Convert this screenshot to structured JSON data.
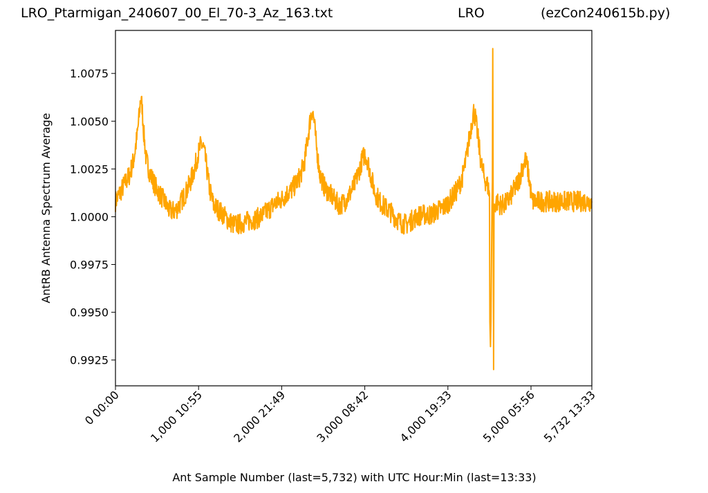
{
  "header": {
    "left_title": "LRO_Ptarmigan_240607_00_El_70-3_Az_163.txt",
    "center_title": "LRO",
    "right_title": "(ezCon240615b.py)"
  },
  "chart_data": {
    "type": "line",
    "xlabel": "Ant Sample Number (last=5,732) with UTC Hour:Min (last=13:33)",
    "ylabel": "AntRB Antenna Spectrum Average",
    "xlim": [
      0,
      5732
    ],
    "ylim": [
      0.99115,
      1.00975
    ],
    "x_ticks": [
      {
        "value": 0,
        "label": "0  00:00"
      },
      {
        "value": 1000,
        "label": "1,000  10:55"
      },
      {
        "value": 2000,
        "label": "2,000  21:49"
      },
      {
        "value": 3000,
        "label": "3,000  08:42"
      },
      {
        "value": 4000,
        "label": "4,000  19:33"
      },
      {
        "value": 5000,
        "label": "5,000  05:56"
      },
      {
        "value": 5732,
        "label": "5,732  13:33"
      }
    ],
    "y_ticks": [
      {
        "value": 0.9925,
        "label": "0.9925"
      },
      {
        "value": 0.995,
        "label": "0.9950"
      },
      {
        "value": 0.9975,
        "label": "0.9975"
      },
      {
        "value": 1.0,
        "label": "1.0000"
      },
      {
        "value": 1.0025,
        "label": "1.0025"
      },
      {
        "value": 1.005,
        "label": "1.0050"
      },
      {
        "value": 1.0075,
        "label": "1.0075"
      }
    ],
    "grid": false,
    "series": [
      {
        "color": "#ffa500",
        "points": [
          [
            0,
            1.0008
          ],
          [
            60,
            1.0013
          ],
          [
            120,
            1.0018
          ],
          [
            170,
            1.0022
          ],
          [
            220,
            1.003
          ],
          [
            260,
            1.0042
          ],
          [
            290,
            1.0055
          ],
          [
            300,
            1.0062
          ],
          [
            320,
            1.0058
          ],
          [
            340,
            1.0044
          ],
          [
            370,
            1.003
          ],
          [
            420,
            1.0022
          ],
          [
            480,
            1.0016
          ],
          [
            530,
            1.0012
          ],
          [
            590,
            1.0008
          ],
          [
            650,
            1.0003
          ],
          [
            720,
            1.0003
          ],
          [
            780,
            1.0007
          ],
          [
            840,
            1.0012
          ],
          [
            900,
            1.0018
          ],
          [
            950,
            1.0025
          ],
          [
            990,
            1.0032
          ],
          [
            1030,
            1.0038
          ],
          [
            1060,
            1.0036
          ],
          [
            1090,
            1.0028
          ],
          [
            1130,
            1.0015
          ],
          [
            1180,
            1.0006
          ],
          [
            1230,
            1.0004
          ],
          [
            1300,
            1.0001
          ],
          [
            1360,
            0.9998
          ],
          [
            1420,
            0.9996
          ],
          [
            1480,
            0.9996
          ],
          [
            1550,
            0.9997
          ],
          [
            1620,
            0.9998
          ],
          [
            1700,
            0.9999
          ],
          [
            1780,
            1.0001
          ],
          [
            1850,
            1.0004
          ],
          [
            1920,
            1.0007
          ],
          [
            2000,
            1.0009
          ],
          [
            2060,
            1.0012
          ],
          [
            2120,
            1.0014
          ],
          [
            2180,
            1.0018
          ],
          [
            2230,
            1.0022
          ],
          [
            2280,
            1.003
          ],
          [
            2320,
            1.0043
          ],
          [
            2350,
            1.0053
          ],
          [
            2370,
            1.0056
          ],
          [
            2390,
            1.005
          ],
          [
            2420,
            1.0036
          ],
          [
            2460,
            1.0022
          ],
          [
            2520,
            1.0015
          ],
          [
            2580,
            1.0012
          ],
          [
            2650,
            1.0008
          ],
          [
            2700,
            1.0006
          ],
          [
            2760,
            1.0008
          ],
          [
            2820,
            1.0012
          ],
          [
            2880,
            1.0017
          ],
          [
            2930,
            1.0024
          ],
          [
            2970,
            1.003
          ],
          [
            3000,
            1.0033
          ],
          [
            3030,
            1.003
          ],
          [
            3070,
            1.0022
          ],
          [
            3120,
            1.0013
          ],
          [
            3180,
            1.0008
          ],
          [
            3240,
            1.0005
          ],
          [
            3300,
            1.0003
          ],
          [
            3360,
            1.0
          ],
          [
            3430,
            0.9997
          ],
          [
            3500,
            0.9996
          ],
          [
            3560,
            0.9998
          ],
          [
            3620,
            1.0
          ],
          [
            3680,
            1.0001
          ],
          [
            3740,
            1.0001
          ],
          [
            3800,
            1.0001
          ],
          [
            3860,
            1.0003
          ],
          [
            3920,
            1.0004
          ],
          [
            3980,
            1.0006
          ],
          [
            4050,
            1.001
          ],
          [
            4110,
            1.0014
          ],
          [
            4170,
            1.002
          ],
          [
            4220,
            1.003
          ],
          [
            4260,
            1.0042
          ],
          [
            4290,
            1.005
          ],
          [
            4310,
            1.0055
          ],
          [
            4330,
            1.0052
          ],
          [
            4360,
            1.0042
          ],
          [
            4400,
            1.0028
          ],
          [
            4440,
            1.002
          ],
          [
            4480,
            1.0016
          ],
          [
            4500,
            1.0012
          ],
          [
            4505,
            0.9945
          ],
          [
            4512,
            0.9932
          ],
          [
            4518,
            0.9945
          ],
          [
            4525,
            0.9978
          ],
          [
            4530,
            1.0005
          ],
          [
            4535,
            1.0018
          ],
          [
            4540,
            1.0088
          ],
          [
            4545,
            1.0005
          ],
          [
            4550,
            0.992
          ],
          [
            4555,
            1.0004
          ],
          [
            4580,
            1.0008
          ],
          [
            4640,
            1.0006
          ],
          [
            4700,
            1.0007
          ],
          [
            4760,
            1.0011
          ],
          [
            4820,
            1.0016
          ],
          [
            4860,
            1.002
          ],
          [
            4900,
            1.0026
          ],
          [
            4930,
            1.003
          ],
          [
            4960,
            1.0025
          ],
          [
            4990,
            1.0016
          ],
          [
            5010,
            1.0008
          ],
          [
            5732,
            1.0008
          ]
        ]
      }
    ]
  }
}
